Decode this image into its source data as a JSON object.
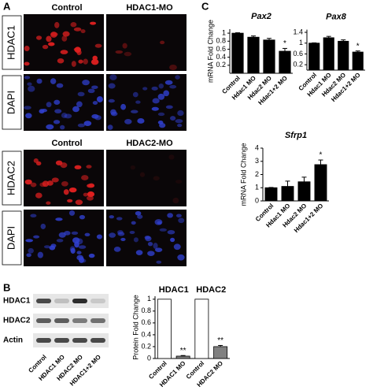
{
  "figure": {
    "panel_labels": [
      "A",
      "B",
      "C"
    ],
    "panel_a": {
      "block1_columns": [
        "Control",
        "HDAC1-MO"
      ],
      "block1_rows": [
        "HDAC1",
        "DAPI"
      ],
      "block2_columns": [
        "Control",
        "HDAC2-MO"
      ],
      "block2_rows": [
        "HDAC2",
        "DAPI"
      ]
    },
    "panel_b_blot": {
      "rows": [
        "HDAC1",
        "HDAC2",
        "Actin"
      ],
      "lanes": [
        "Control",
        "HDAC1 MO",
        "HDAC2 MO",
        "HDAC1+2 MO"
      ]
    }
  },
  "chart_data": [
    {
      "type": "bar",
      "title": "Pax2",
      "ylabel": "mRNA Fold Change",
      "categories": [
        "Control",
        "Hdac1 MO",
        "Hdac2 MO",
        "Hdac1+2 MO"
      ],
      "values": [
        1.0,
        0.9,
        0.83,
        0.55
      ],
      "errors": [
        0.01,
        0.03,
        0.04,
        0.07
      ],
      "significance": [
        null,
        null,
        null,
        "*"
      ],
      "colors": [
        "#000000",
        "#000000",
        "#000000",
        "#000000"
      ],
      "ylim": [
        0,
        1.1
      ],
      "yticks": [
        {
          "value": 0.2,
          "label": "0.2"
        },
        {
          "value": 0.4,
          "label": "0.4"
        },
        {
          "value": 0.6,
          "label": "0.6"
        },
        {
          "value": 0.8,
          "label": "0.8"
        },
        1
      ]
    },
    {
      "type": "bar",
      "title": "Pax8",
      "ylabel": null,
      "categories": [
        "Control",
        "Hdac1 MO",
        "Hdac2 MO",
        "Hdac1+2 MO"
      ],
      "values": [
        1.0,
        1.2,
        1.07,
        0.67
      ],
      "errors": [
        0.01,
        0.05,
        0.05,
        0.04
      ],
      "significance": [
        null,
        null,
        null,
        "*"
      ],
      "colors": [
        "#000000",
        "#000000",
        "#000000",
        "#000000"
      ],
      "ylim": [
        0,
        1.5
      ],
      "yticks": [
        {
          "value": 0.2,
          "label": "0.2"
        },
        {
          "value": 0.6,
          "label": "0.6"
        },
        1,
        {
          "value": 1.4,
          "label": "1.4"
        }
      ]
    },
    {
      "type": "bar",
      "title": "Sfrp1",
      "ylabel": "mRNA Fold Change",
      "categories": [
        "Control",
        "Hdac1 MO",
        "Hdac2 MO",
        "Hdac1+2 MO"
      ],
      "values": [
        1.0,
        1.1,
        1.45,
        2.75
      ],
      "errors": [
        0.02,
        0.4,
        0.35,
        0.35
      ],
      "significance": [
        null,
        null,
        null,
        "*"
      ],
      "colors": [
        "#000000",
        "#000000",
        "#000000",
        "#000000"
      ],
      "ylim": [
        0,
        4
      ],
      "yticks": [
        0,
        1,
        2,
        3,
        4
      ]
    },
    {
      "type": "bar",
      "title": null,
      "ylabel": "Protein Fold Change",
      "groups": [
        "HDAC1",
        "HDAC2"
      ],
      "categories": [
        "Control",
        "HDAC1 MO",
        "Control",
        "HDAC2 MO"
      ],
      "values": [
        1,
        0.04,
        1,
        0.2
      ],
      "errors": [
        0,
        0.01,
        0,
        0.02
      ],
      "significance": [
        null,
        "**",
        null,
        "**"
      ],
      "colors": [
        "#ffffff",
        "#808080",
        "#ffffff",
        "#808080"
      ],
      "ylim": [
        0,
        1.05
      ],
      "yticks": [
        0,
        {
          "value": 0.2,
          "label": "0.2"
        },
        {
          "value": 0.4,
          "label": "0.4"
        },
        {
          "value": 0.6,
          "label": "0.6"
        },
        {
          "value": 0.8,
          "label": "0.8"
        },
        1
      ]
    }
  ]
}
